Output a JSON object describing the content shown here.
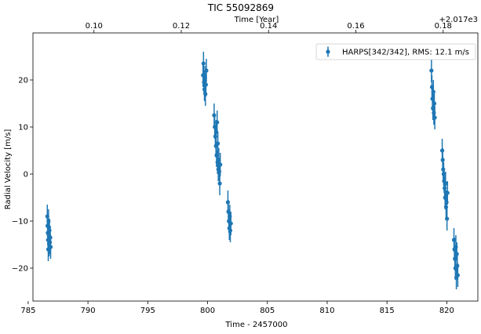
{
  "chart_data": {
    "type": "scatter",
    "title": "TIC 55092869",
    "xlabel": "Time - 2457000",
    "ylabel": "Radial Velocity [m/s]",
    "x2label": "Time [Year]",
    "x2offset": "+2.017e3",
    "xlim": [
      785.4,
      822.6
    ],
    "ylim": [
      -27,
      30
    ],
    "xticks": [
      785,
      790,
      795,
      800,
      805,
      810,
      815,
      820
    ],
    "yticks": [
      -20,
      -10,
      0,
      10,
      20
    ],
    "x2ticks": [
      {
        "label": "0.10",
        "x": 790.5
      },
      {
        "label": "0.12",
        "x": 797.8
      },
      {
        "label": "0.14",
        "x": 805.1
      },
      {
        "label": "0.16",
        "x": 812.4
      },
      {
        "label": "0.18",
        "x": 819.7
      }
    ],
    "legend": {
      "location": "top-right",
      "label": "HARPS[342/342], RMS:",
      "rms": "12.1 m/s"
    },
    "color": "#1f77b4",
    "series": [
      {
        "name": "HARPS[342/342], RMS:",
        "points": [
          {
            "x": 786.6,
            "y": -9.0,
            "err": 2.5
          },
          {
            "x": 786.62,
            "y": -11.0,
            "err": 2.5
          },
          {
            "x": 786.64,
            "y": -12.5,
            "err": 2.5
          },
          {
            "x": 786.66,
            "y": -14.0,
            "err": 2.5
          },
          {
            "x": 786.68,
            "y": -16.0,
            "err": 2.5
          },
          {
            "x": 786.7,
            "y": -10.0,
            "err": 2.5
          },
          {
            "x": 786.72,
            "y": -13.0,
            "err": 2.5
          },
          {
            "x": 786.75,
            "y": -15.0,
            "err": 2.5
          },
          {
            "x": 786.78,
            "y": -12.0,
            "err": 2.5
          },
          {
            "x": 786.82,
            "y": -14.5,
            "err": 2.5
          },
          {
            "x": 786.85,
            "y": -13.5,
            "err": 2.5
          },
          {
            "x": 786.88,
            "y": -15.5,
            "err": 2.5
          },
          {
            "x": 799.62,
            "y": 21.0,
            "err": 2.5
          },
          {
            "x": 799.66,
            "y": 23.5,
            "err": 2.5
          },
          {
            "x": 799.7,
            "y": 19.5,
            "err": 2.5
          },
          {
            "x": 799.74,
            "y": 18.0,
            "err": 2.5
          },
          {
            "x": 799.78,
            "y": 20.5,
            "err": 2.5
          },
          {
            "x": 799.82,
            "y": 17.0,
            "err": 2.5
          },
          {
            "x": 799.86,
            "y": 19.0,
            "err": 2.5
          },
          {
            "x": 799.9,
            "y": 22.0,
            "err": 2.5
          },
          {
            "x": 800.55,
            "y": 12.5,
            "err": 2.5
          },
          {
            "x": 800.6,
            "y": 10.0,
            "err": 2.5
          },
          {
            "x": 800.65,
            "y": 8.0,
            "err": 2.5
          },
          {
            "x": 800.7,
            "y": 6.0,
            "err": 2.5
          },
          {
            "x": 800.72,
            "y": 9.0,
            "err": 2.5
          },
          {
            "x": 800.75,
            "y": 4.0,
            "err": 2.5
          },
          {
            "x": 800.8,
            "y": 11.0,
            "err": 2.5
          },
          {
            "x": 800.83,
            "y": 2.5,
            "err": 2.5
          },
          {
            "x": 800.86,
            "y": 6.5,
            "err": 2.5
          },
          {
            "x": 800.9,
            "y": 1.0,
            "err": 2.5
          },
          {
            "x": 800.94,
            "y": 3.0,
            "err": 2.5
          },
          {
            "x": 800.98,
            "y": 0.5,
            "err": 2.5
          },
          {
            "x": 801.02,
            "y": -2.0,
            "err": 2.5
          },
          {
            "x": 801.06,
            "y": 2.0,
            "err": 2.5
          },
          {
            "x": 801.7,
            "y": -6.0,
            "err": 2.5
          },
          {
            "x": 801.74,
            "y": -8.0,
            "err": 2.5
          },
          {
            "x": 801.78,
            "y": -10.0,
            "err": 2.5
          },
          {
            "x": 801.82,
            "y": -11.5,
            "err": 2.5
          },
          {
            "x": 801.86,
            "y": -9.0,
            "err": 2.5
          },
          {
            "x": 801.9,
            "y": -12.0,
            "err": 2.5
          },
          {
            "x": 801.95,
            "y": -10.5,
            "err": 2.5
          },
          {
            "x": 818.72,
            "y": 22.0,
            "err": 2.5
          },
          {
            "x": 818.76,
            "y": 18.5,
            "err": 2.5
          },
          {
            "x": 818.8,
            "y": 16.0,
            "err": 2.5
          },
          {
            "x": 818.84,
            "y": 14.0,
            "err": 2.5
          },
          {
            "x": 818.88,
            "y": 17.5,
            "err": 2.5
          },
          {
            "x": 818.92,
            "y": 13.0,
            "err": 2.5
          },
          {
            "x": 818.96,
            "y": 15.0,
            "err": 2.5
          },
          {
            "x": 819.0,
            "y": 12.0,
            "err": 2.5
          },
          {
            "x": 819.62,
            "y": 5.0,
            "err": 2.5
          },
          {
            "x": 819.66,
            "y": 3.0,
            "err": 2.5
          },
          {
            "x": 819.7,
            "y": 1.0,
            "err": 2.5
          },
          {
            "x": 819.74,
            "y": 0.0,
            "err": 2.5
          },
          {
            "x": 819.78,
            "y": -1.5,
            "err": 2.5
          },
          {
            "x": 819.82,
            "y": -3.0,
            "err": 2.5
          },
          {
            "x": 819.86,
            "y": -5.0,
            "err": 2.5
          },
          {
            "x": 819.9,
            "y": -2.0,
            "err": 2.5
          },
          {
            "x": 819.94,
            "y": -7.0,
            "err": 2.5
          },
          {
            "x": 819.98,
            "y": -6.0,
            "err": 2.5
          },
          {
            "x": 820.02,
            "y": -9.5,
            "err": 2.5
          },
          {
            "x": 820.06,
            "y": -4.0,
            "err": 2.5
          },
          {
            "x": 820.6,
            "y": -14.0,
            "err": 2.5
          },
          {
            "x": 820.64,
            "y": -16.0,
            "err": 2.5
          },
          {
            "x": 820.68,
            "y": -18.0,
            "err": 2.5
          },
          {
            "x": 820.72,
            "y": -20.0,
            "err": 2.5
          },
          {
            "x": 820.76,
            "y": -15.5,
            "err": 2.5
          },
          {
            "x": 820.8,
            "y": -22.0,
            "err": 2.5
          },
          {
            "x": 820.84,
            "y": -17.0,
            "err": 2.5
          },
          {
            "x": 820.88,
            "y": -19.5,
            "err": 2.5
          },
          {
            "x": 820.92,
            "y": -21.5,
            "err": 2.5
          }
        ]
      }
    ]
  }
}
